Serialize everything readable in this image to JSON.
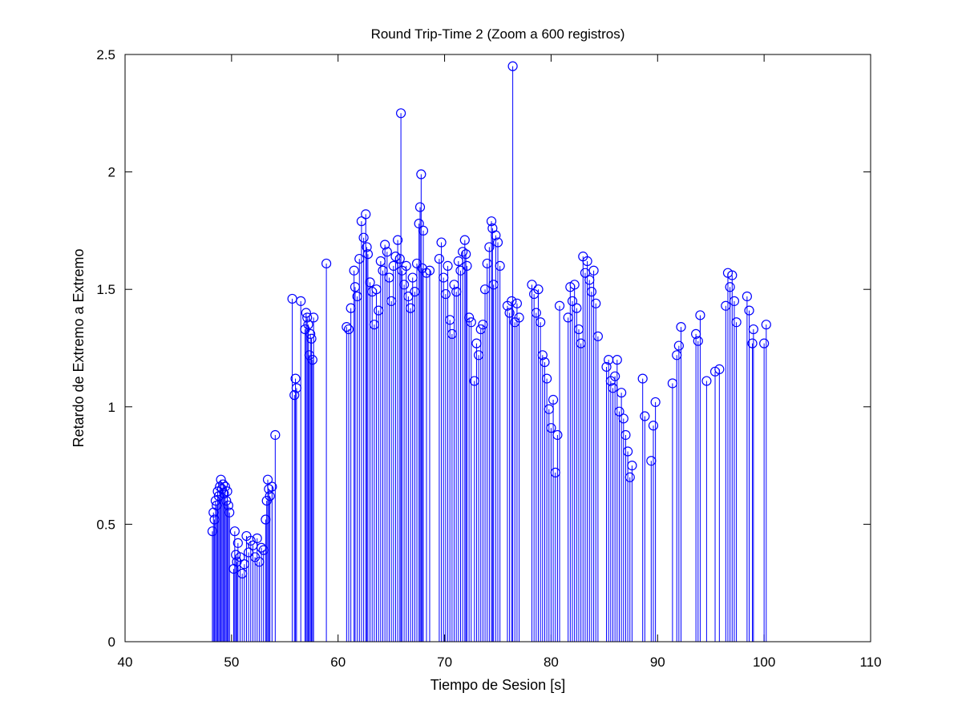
{
  "chart_data": {
    "type": "stem",
    "title": "Round Trip-Time 2 (Zoom a 600 registros)",
    "xlabel": "Tiempo de Sesion [s]",
    "ylabel": "Retardo de Extremo a Extremo",
    "xlim": [
      40,
      110
    ],
    "ylim": [
      0,
      2.5
    ],
    "x_ticks": [
      "40",
      "50",
      "60",
      "70",
      "80",
      "90",
      "100",
      "110"
    ],
    "y_ticks": [
      "0",
      "0.5",
      "1",
      "1.5",
      "2",
      "2.5"
    ],
    "grid": false,
    "marker": "circle",
    "color": "#0000ff",
    "series": [
      {
        "x": [
          48.2,
          48.3,
          48.4,
          48.5,
          48.6,
          48.7,
          48.8,
          48.9,
          49.0,
          49.1,
          49.2,
          49.3,
          49.4,
          49.5,
          49.6,
          49.7,
          49.8,
          50.2,
          50.3,
          50.4,
          50.5,
          50.6,
          50.8,
          51.0,
          51.2,
          51.4,
          51.6,
          51.8,
          52.0,
          52.2,
          52.4,
          52.6,
          52.8,
          53.0,
          53.2,
          53.3,
          53.4,
          53.5,
          53.6,
          53.8,
          54.1,
          55.7,
          55.9,
          56.0,
          56.1,
          56.5,
          56.9,
          57.0,
          57.1,
          57.2,
          57.3,
          57.4,
          57.5,
          57.6,
          57.7,
          58.9,
          60.8,
          61.0,
          61.2,
          61.5,
          61.6,
          61.8,
          62.0,
          62.2,
          62.4,
          62.6,
          62.7,
          62.8,
          63.0,
          63.2,
          63.4,
          63.6,
          63.8,
          64.0,
          64.2,
          64.4,
          64.6,
          64.8,
          65.0,
          65.2,
          65.4,
          65.6,
          65.8,
          65.9,
          66.0,
          66.2,
          66.4,
          66.6,
          66.8,
          67.0,
          67.2,
          67.4,
          67.6,
          67.7,
          67.8,
          67.9,
          68.0,
          68.3,
          68.6,
          69.5,
          69.7,
          69.9,
          70.1,
          70.3,
          70.5,
          70.7,
          70.9,
          71.1,
          71.3,
          71.5,
          71.7,
          71.9,
          72.0,
          72.1,
          72.3,
          72.5,
          72.8,
          73.0,
          73.2,
          73.4,
          73.6,
          73.8,
          74.0,
          74.2,
          74.4,
          74.5,
          74.6,
          74.8,
          75.0,
          75.2,
          75.9,
          76.1,
          76.3,
          76.4,
          76.6,
          76.8,
          77.0,
          78.2,
          78.4,
          78.6,
          78.8,
          79.0,
          79.2,
          79.4,
          79.6,
          79.8,
          80.0,
          80.2,
          80.4,
          80.6,
          80.8,
          81.6,
          81.8,
          82.0,
          82.2,
          82.4,
          82.6,
          82.8,
          83.0,
          83.2,
          83.4,
          83.6,
          83.8,
          84.0,
          84.2,
          84.4,
          85.2,
          85.4,
          85.6,
          85.8,
          86.0,
          86.2,
          86.4,
          86.6,
          86.8,
          87.0,
          87.2,
          87.4,
          87.6,
          88.6,
          88.8,
          89.4,
          89.6,
          89.8,
          91.4,
          91.8,
          92.0,
          92.2,
          93.6,
          93.8,
          94.0,
          94.6,
          95.4,
          95.8,
          96.4,
          96.6,
          96.8,
          97.0,
          97.2,
          97.4,
          98.4,
          98.6,
          98.9,
          99.0,
          100.0,
          100.2
        ],
        "y": [
          0.47,
          0.55,
          0.52,
          0.6,
          0.58,
          0.64,
          0.62,
          0.66,
          0.69,
          0.65,
          0.67,
          0.63,
          0.66,
          0.6,
          0.64,
          0.58,
          0.55,
          0.31,
          0.47,
          0.37,
          0.34,
          0.42,
          0.36,
          0.29,
          0.33,
          0.45,
          0.38,
          0.43,
          0.41,
          0.36,
          0.44,
          0.34,
          0.4,
          0.39,
          0.52,
          0.6,
          0.69,
          0.65,
          0.62,
          0.66,
          0.88,
          1.46,
          1.05,
          1.12,
          1.08,
          1.45,
          1.33,
          1.4,
          1.38,
          1.35,
          1.22,
          1.31,
          1.29,
          1.2,
          1.38,
          1.61,
          1.34,
          1.33,
          1.42,
          1.58,
          1.51,
          1.47,
          1.63,
          1.79,
          1.72,
          1.82,
          1.68,
          1.65,
          1.53,
          1.49,
          1.35,
          1.5,
          1.41,
          1.62,
          1.58,
          1.69,
          1.66,
          1.55,
          1.45,
          1.6,
          1.64,
          1.71,
          1.63,
          2.25,
          1.58,
          1.52,
          1.6,
          1.47,
          1.42,
          1.55,
          1.49,
          1.61,
          1.78,
          1.85,
          1.99,
          1.59,
          1.75,
          1.57,
          1.58,
          1.63,
          1.7,
          1.55,
          1.48,
          1.6,
          1.37,
          1.31,
          1.52,
          1.49,
          1.62,
          1.58,
          1.66,
          1.71,
          1.65,
          1.6,
          1.38,
          1.36,
          1.11,
          1.27,
          1.22,
          1.33,
          1.35,
          1.5,
          1.61,
          1.68,
          1.79,
          1.76,
          1.52,
          1.73,
          1.7,
          1.6,
          1.43,
          1.4,
          1.45,
          2.45,
          1.36,
          1.44,
          1.38,
          1.52,
          1.48,
          1.4,
          1.5,
          1.36,
          1.22,
          1.19,
          1.12,
          0.99,
          0.91,
          1.03,
          0.72,
          0.88,
          1.43,
          1.38,
          1.51,
          1.45,
          1.52,
          1.42,
          1.33,
          1.27,
          1.64,
          1.57,
          1.62,
          1.54,
          1.49,
          1.58,
          1.44,
          1.3,
          1.17,
          1.2,
          1.11,
          1.08,
          1.13,
          1.2,
          0.98,
          1.06,
          0.95,
          0.88,
          0.81,
          0.7,
          0.75,
          1.12,
          0.96,
          0.77,
          0.92,
          1.02,
          1.1,
          1.22,
          1.26,
          1.34,
          1.31,
          1.28,
          1.39,
          1.11,
          1.15,
          1.16,
          1.43,
          1.57,
          1.51,
          1.56,
          1.45,
          1.36,
          1.47,
          1.41,
          1.27,
          1.33,
          1.27,
          1.35
        ]
      }
    ]
  }
}
